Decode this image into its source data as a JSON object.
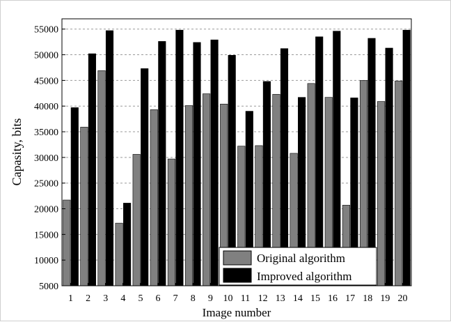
{
  "chart_data": {
    "type": "bar",
    "title": "",
    "xlabel": "Image number",
    "ylabel": "Capasity, bits",
    "categories": [
      "1",
      "2",
      "3",
      "4",
      "5",
      "6",
      "7",
      "8",
      "9",
      "10",
      "11",
      "12",
      "13",
      "14",
      "15",
      "16",
      "17",
      "18",
      "19",
      "20"
    ],
    "ylim": [
      5000,
      57000
    ],
    "yticks": [
      5000,
      10000,
      15000,
      20000,
      25000,
      30000,
      35000,
      40000,
      45000,
      50000,
      55000
    ],
    "grid": "horizontal dashed",
    "legend_position": "bottom-right",
    "series": [
      {
        "name": "Original algorithm",
        "color": "#808080",
        "values": [
          21700,
          35900,
          46900,
          17200,
          30600,
          39300,
          29700,
          40100,
          42400,
          40400,
          32200,
          32300,
          42300,
          30800,
          44400,
          41700,
          20700,
          45000,
          40900,
          44900
        ]
      },
      {
        "name": "Improved algorithm",
        "color": "#000000",
        "values": [
          39700,
          50200,
          54700,
          21100,
          47300,
          52600,
          54800,
          52400,
          52900,
          49900,
          39000,
          44800,
          51200,
          41700,
          53500,
          54600,
          41600,
          53200,
          51300,
          54800
        ]
      }
    ]
  }
}
